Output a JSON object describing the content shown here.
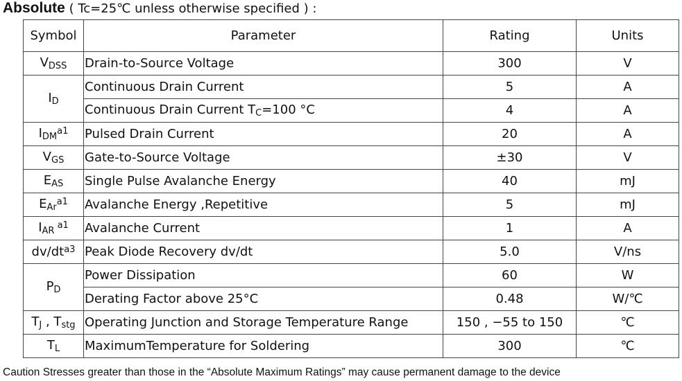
{
  "title": {
    "bold": "Absolute",
    "rest": "( Tc=25℃  unless otherwise specified ) :"
  },
  "table": {
    "header": [
      "Symbol",
      "Parameter",
      "Rating",
      "Units"
    ],
    "rows": [
      {
        "symbol": [
          {
            "text": "V"
          },
          {
            "sub": "DSS"
          }
        ],
        "items": [
          {
            "parameter": "Drain-to-Source Voltage",
            "rating": "300",
            "unit": "V"
          }
        ]
      },
      {
        "symbol": [
          {
            "text": "I"
          },
          {
            "sub": "D"
          }
        ],
        "items": [
          {
            "parameter": "Continuous Drain Current",
            "rating": "5",
            "unit": "A"
          },
          {
            "parameter": [
              {
                "text": "Continuous Drain Current T"
              },
              {
                "sub": "C"
              },
              {
                "text": "=100 °C"
              }
            ],
            "rating": "4",
            "unit": "A"
          }
        ]
      },
      {
        "symbol": [
          {
            "text": "I"
          },
          {
            "sub": "DM"
          },
          {
            "sup": "a1"
          }
        ],
        "items": [
          {
            "parameter": "Pulsed Drain Current",
            "rating": "20",
            "unit": "A"
          }
        ]
      },
      {
        "symbol": [
          {
            "text": "V"
          },
          {
            "sub": "GS"
          }
        ],
        "items": [
          {
            "parameter": "Gate-to-Source Voltage",
            "rating": "±30",
            "unit": "V"
          }
        ]
      },
      {
        "symbol": [
          {
            "text": "E"
          },
          {
            "sub": "AS"
          }
        ],
        "items": [
          {
            "parameter": "Single Pulse Avalanche Energy",
            "rating": "40",
            "unit": "mJ"
          }
        ]
      },
      {
        "symbol": [
          {
            "text": "E"
          },
          {
            "sub": "Ar"
          },
          {
            "sup": "a1"
          }
        ],
        "items": [
          {
            "parameter": "Avalanche Energy ,Repetitive",
            "rating": "5",
            "unit": "mJ"
          }
        ]
      },
      {
        "symbol": [
          {
            "text": "I"
          },
          {
            "sub": "AR"
          },
          {
            "sup": " a1"
          }
        ],
        "items": [
          {
            "parameter": "Avalanche Current",
            "rating": "1",
            "unit": "A"
          }
        ]
      },
      {
        "symbol": [
          {
            "text": "dv/dt"
          },
          {
            "sup": "a3"
          }
        ],
        "items": [
          {
            "parameter": "Peak Diode Recovery dv/dt",
            "rating": "5.0",
            "unit": "V/ns"
          }
        ]
      },
      {
        "symbol": [
          {
            "text": "P"
          },
          {
            "sub": "D"
          }
        ],
        "items": [
          {
            "parameter": "Power Dissipation",
            "rating": "60",
            "unit": "W"
          },
          {
            "parameter": "Derating Factor above 25°C",
            "rating": "0.48",
            "unit": "W/℃"
          }
        ]
      },
      {
        "symbol": [
          {
            "text": "T"
          },
          {
            "sub": "J"
          },
          {
            "text": " , T"
          },
          {
            "sub": "stg"
          }
        ],
        "items": [
          {
            "parameter": "Operating Junction and Storage Temperature Range",
            "rating": "150 , −55 to 150",
            "unit": "℃"
          }
        ]
      },
      {
        "symbol": [
          {
            "text": "T"
          },
          {
            "sub": "L"
          }
        ],
        "items": [
          {
            "parameter": "MaximumTemperature for Soldering",
            "rating": "300",
            "unit": "℃"
          }
        ]
      }
    ]
  },
  "caption": "Caution Stresses greater than those in the  “Absolute Maximum Ratings”  may cause permanent damage to the device"
}
